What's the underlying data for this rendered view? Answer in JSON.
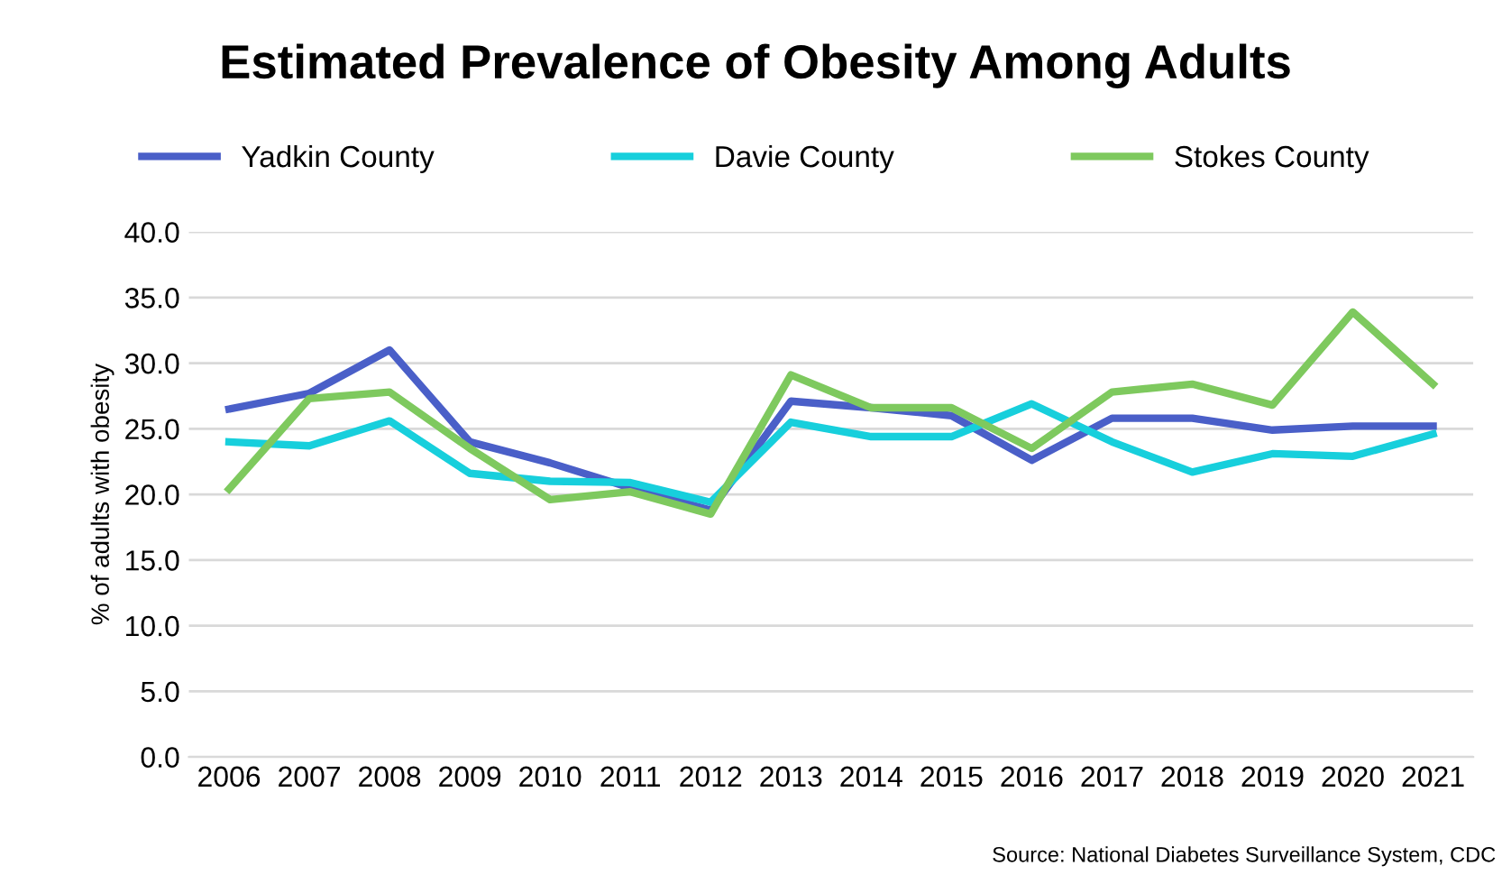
{
  "chart_data": {
    "type": "line",
    "title": "Estimated Prevalence of Obesity Among Adults",
    "ylabel": "% of adults with obesity",
    "categories": [
      "2006",
      "2007",
      "2008",
      "2009",
      "2010",
      "2011",
      "2012",
      "2013",
      "2014",
      "2015",
      "2016",
      "2017",
      "2018",
      "2019",
      "2020",
      "2021"
    ],
    "series": [
      {
        "name": "Yadkin County",
        "color": "#4a5fc8",
        "values": [
          26.5,
          27.7,
          31.0,
          24.0,
          22.4,
          20.5,
          18.8,
          27.1,
          26.6,
          26.0,
          22.6,
          25.8,
          25.8,
          24.9,
          25.2,
          25.2
        ]
      },
      {
        "name": "Davie County",
        "color": "#17cfdc",
        "values": [
          24.0,
          23.7,
          25.6,
          21.6,
          21.0,
          20.9,
          19.4,
          25.5,
          24.4,
          24.4,
          26.9,
          24.0,
          21.7,
          23.1,
          22.9,
          24.6
        ]
      },
      {
        "name": "Stokes County",
        "color": "#7ec95e",
        "values": [
          20.4,
          27.3,
          27.8,
          23.5,
          19.6,
          20.2,
          18.5,
          29.1,
          26.6,
          26.6,
          23.5,
          27.8,
          28.4,
          26.8,
          33.9,
          28.4
        ]
      }
    ],
    "ylim": [
      0,
      40
    ],
    "yticks": [
      {
        "value": 0,
        "label": "0.0"
      },
      {
        "value": 5,
        "label": "5.0"
      },
      {
        "value": 10,
        "label": "10.0"
      },
      {
        "value": 15,
        "label": "15.0"
      },
      {
        "value": 20,
        "label": "20.0"
      },
      {
        "value": 25,
        "label": "25.0"
      },
      {
        "value": 30,
        "label": "30.0"
      },
      {
        "value": 35,
        "label": "35.0"
      },
      {
        "value": 40,
        "label": "40.0"
      }
    ],
    "grid": "y",
    "legend": "top",
    "marker": "none",
    "line_style": "solid",
    "annotations": [
      "Source: National Diabetes Surveillance System, CDC"
    ]
  }
}
